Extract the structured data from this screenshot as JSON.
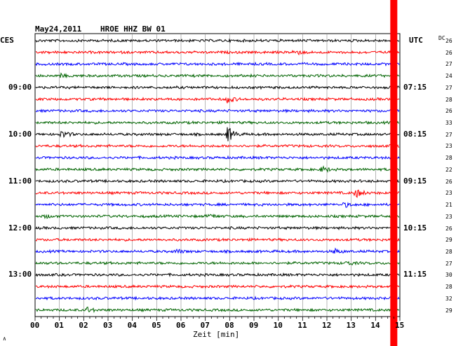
{
  "header": {
    "date": "May24,2011",
    "station": "HROE HHZ BW 01",
    "left_timezone": "CES",
    "right_timezone": "UTC",
    "dc_label": "DC"
  },
  "chart_data": {
    "type": "line",
    "title": "May24,2011  HROE HHZ BW 01",
    "xlabel": "Zeit [min]",
    "x_ticks": [
      "00",
      "01",
      "02",
      "03",
      "04",
      "05",
      "06",
      "07",
      "08",
      "09",
      "10",
      "11",
      "12",
      "13",
      "14",
      "15"
    ],
    "xlim": [
      0,
      15
    ],
    "grid": true,
    "trace_colors": [
      "#000000",
      "#ff0000",
      "#0000ff",
      "#006400"
    ],
    "left_time_labels": [
      {
        "line": 4,
        "label": "09:00"
      },
      {
        "line": 8,
        "label": "10:00"
      },
      {
        "line": 12,
        "label": "11:00"
      },
      {
        "line": 16,
        "label": "12:00"
      },
      {
        "line": 20,
        "label": "13:00"
      }
    ],
    "right_time_labels": [
      {
        "line": 4,
        "label": "07:15"
      },
      {
        "line": 8,
        "label": "08:15"
      },
      {
        "line": 12,
        "label": "09:15"
      },
      {
        "line": 16,
        "label": "10:15"
      },
      {
        "line": 20,
        "label": "11:15"
      }
    ],
    "dc_values": [
      "26",
      "26",
      "27",
      "24",
      "27",
      "28",
      "26",
      "33",
      "27",
      "23",
      "28",
      "22",
      "26",
      "23",
      "21",
      "23",
      "26",
      "29",
      "28",
      "27",
      "30",
      "28",
      "32",
      "29"
    ],
    "events": [
      {
        "line": 1,
        "minute": 10.6,
        "amp": 0.9
      },
      {
        "line": 3,
        "minute": 1.0,
        "amp": 0.4
      },
      {
        "line": 5,
        "minute": 7.9,
        "amp": 1.0
      },
      {
        "line": 8,
        "minute": 1.1,
        "amp": 1.0
      },
      {
        "line": 8,
        "minute": 7.9,
        "amp": 2.2
      },
      {
        "line": 11,
        "minute": 11.8,
        "amp": 0.8
      },
      {
        "line": 13,
        "minute": 13.2,
        "amp": 1.1
      },
      {
        "line": 14,
        "minute": 12.7,
        "amp": 0.6
      },
      {
        "line": 15,
        "minute": 7.2,
        "amp": 0.5
      },
      {
        "line": 15,
        "minute": 0.4,
        "amp": 0.4
      },
      {
        "line": 18,
        "minute": 5.8,
        "amp": 0.5
      },
      {
        "line": 18,
        "minute": 12.3,
        "amp": 0.6
      },
      {
        "line": 19,
        "minute": 12.8,
        "amp": 0.5
      },
      {
        "line": 23,
        "minute": 2.1,
        "amp": 0.7
      }
    ],
    "current_time_marker_minute": 14.75,
    "marker_color": "#ff0000"
  },
  "footer": {
    "corner_mark": "∧"
  }
}
